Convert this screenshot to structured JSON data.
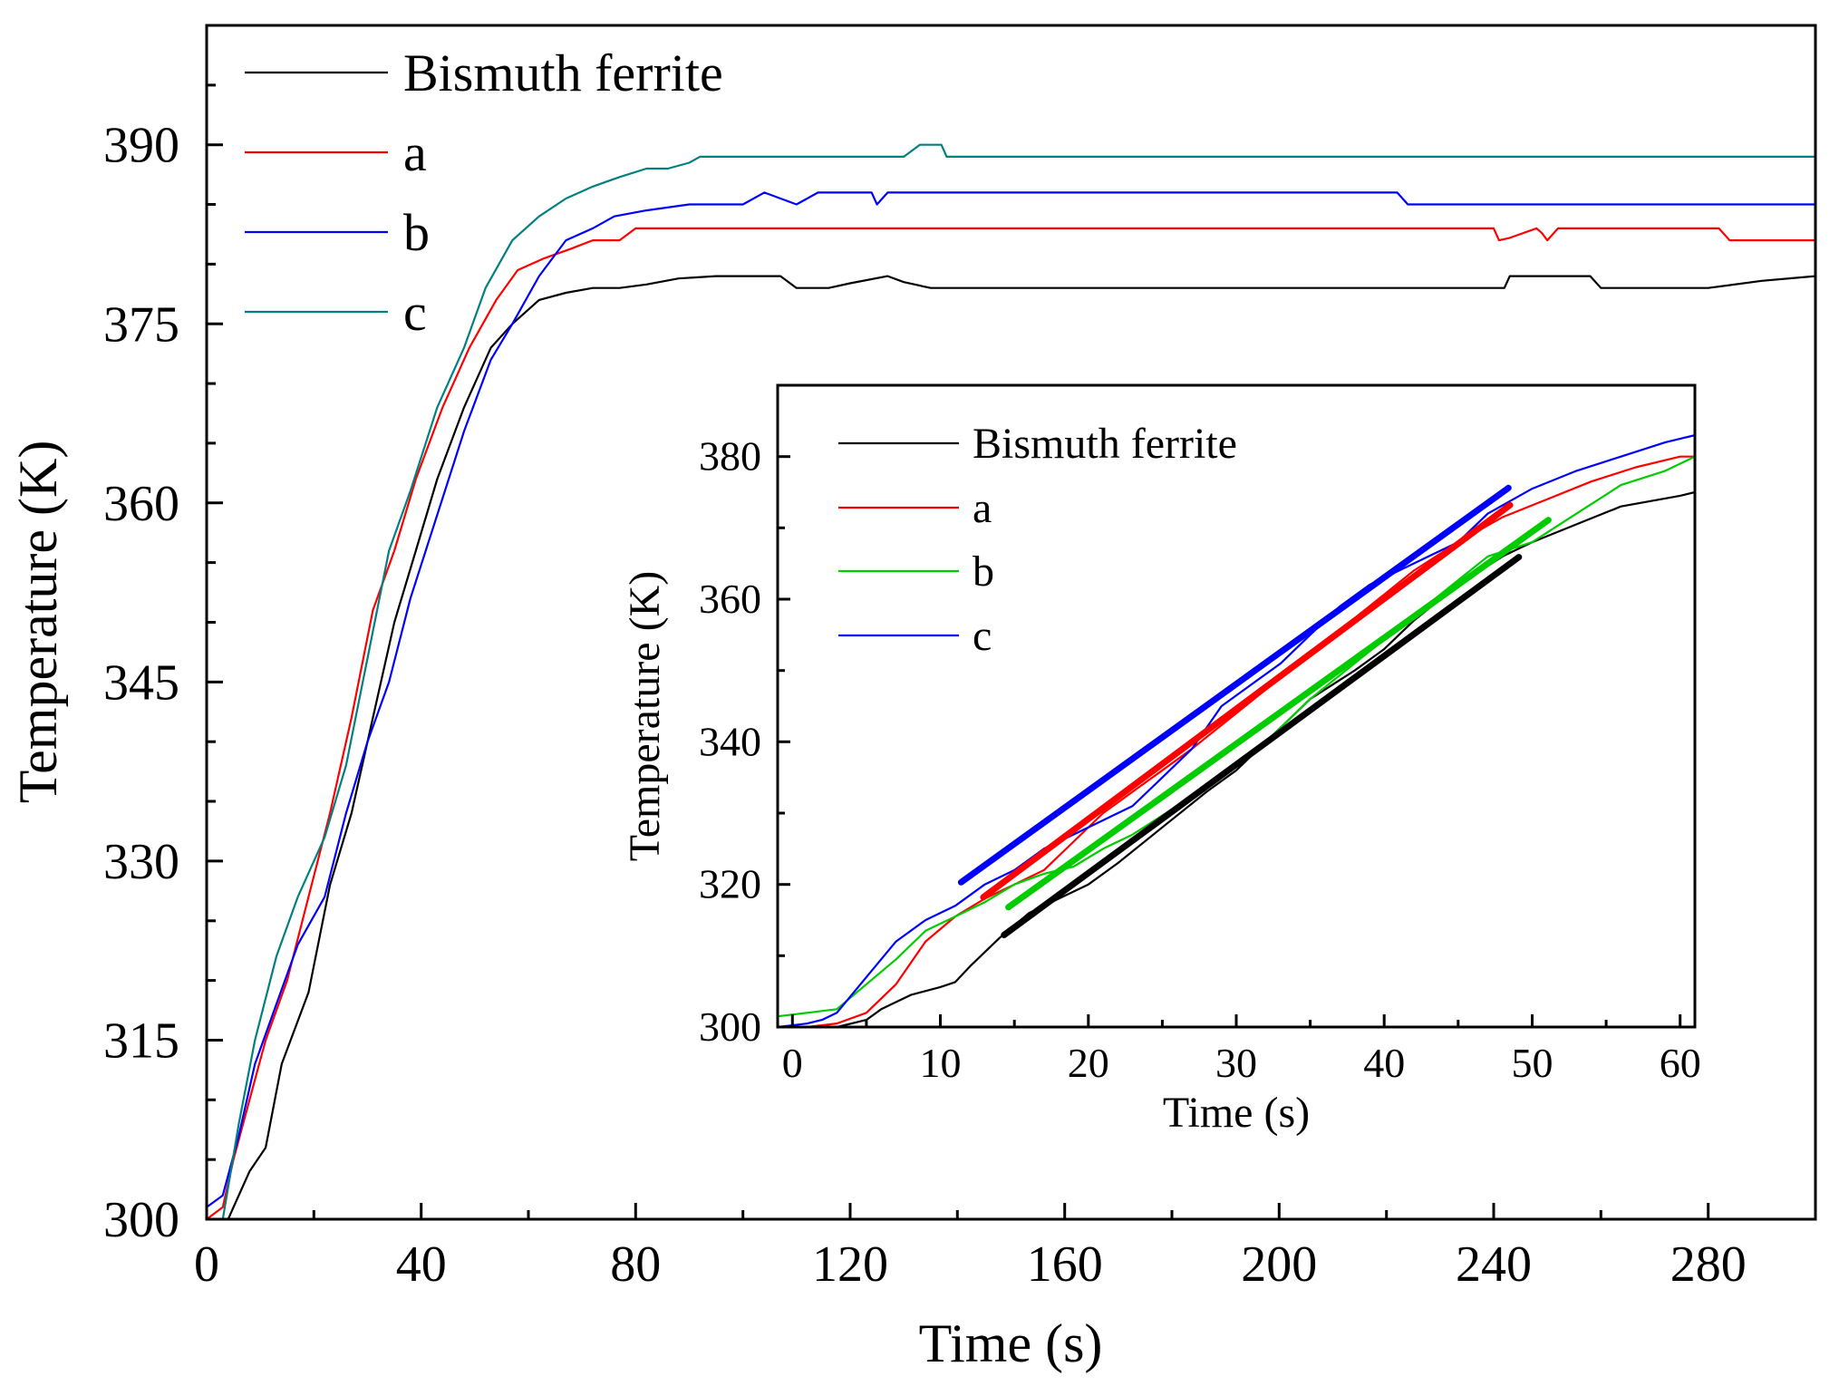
{
  "chart_data": [
    {
      "id": "main",
      "type": "line",
      "title": "",
      "xlabel": "Time (s)",
      "ylabel": "Temperature (K)",
      "xlim": [
        0,
        300
      ],
      "ylim": [
        300,
        400
      ],
      "xticks": [
        0,
        40,
        80,
        120,
        160,
        200,
        240,
        280
      ],
      "yticks": [
        300,
        315,
        330,
        345,
        360,
        375,
        390
      ],
      "x_minor_step": 20,
      "y_minor_step": 5,
      "grid": false,
      "legend_position": "top-left",
      "series": [
        {
          "name": "Bismuth ferrite",
          "color": "#000000",
          "x": [
            0,
            4,
            8,
            11,
            14,
            19,
            23,
            27,
            31,
            35,
            39,
            43,
            48,
            53,
            57,
            62,
            67,
            72,
            77,
            82,
            88,
            95,
            100,
            107,
            110,
            116,
            120,
            127,
            130,
            135,
            140,
            150,
            160,
            170,
            180,
            190,
            200,
            210,
            220,
            230,
            242,
            243,
            247,
            252,
            258,
            260,
            265,
            270,
            280,
            290,
            300
          ],
          "y": [
            300,
            300,
            304,
            306,
            313,
            319,
            328,
            334,
            342,
            350,
            356,
            362,
            368,
            373,
            375,
            377,
            377.6,
            378,
            378,
            378.3,
            378.8,
            379,
            379,
            379,
            378,
            378,
            378.4,
            379,
            378.5,
            378,
            378,
            378,
            378,
            378,
            378,
            378,
            378,
            378,
            378,
            378,
            378,
            379,
            379,
            379,
            379,
            378,
            378,
            378,
            378,
            378.6,
            379
          ]
        },
        {
          "name": "a",
          "color": "#ff0000",
          "x": [
            0,
            3,
            5,
            8,
            11,
            15,
            19,
            23,
            27,
            31,
            35,
            39,
            44,
            49,
            54,
            58,
            63,
            68,
            72,
            77,
            80,
            85,
            90,
            100,
            110,
            120,
            130,
            140,
            150,
            160,
            170,
            180,
            190,
            200,
            210,
            220,
            230,
            240,
            241,
            243,
            248,
            249,
            250,
            252,
            258,
            262,
            270,
            282,
            284,
            290,
            300
          ],
          "y": [
            300,
            301,
            305,
            310,
            315,
            320,
            327,
            334,
            342,
            351,
            356,
            362,
            368,
            373,
            377,
            379.5,
            380.5,
            381.3,
            382,
            382,
            383,
            383,
            383,
            383,
            383,
            383,
            383,
            383,
            383,
            383,
            383,
            383,
            383,
            383,
            383,
            383,
            383,
            383,
            382,
            382.2,
            383,
            382.6,
            382,
            383,
            383,
            383,
            383,
            383,
            382,
            382,
            382
          ]
        },
        {
          "name": "b",
          "color": "#0000ff",
          "x": [
            0,
            3,
            6,
            9,
            13,
            17,
            22,
            26,
            30,
            34,
            38,
            43,
            48,
            53,
            57,
            62,
            67,
            72,
            76,
            82,
            90,
            100,
            104,
            110,
            114,
            124,
            125,
            127,
            135,
            145,
            165,
            185,
            205,
            215,
            222,
            224,
            235,
            255,
            275,
            290,
            300
          ],
          "y": [
            301,
            302,
            307,
            313,
            318,
            323,
            327,
            334,
            340,
            345,
            352,
            359,
            366,
            372,
            375,
            379,
            382,
            383,
            384,
            384.5,
            385,
            385,
            386,
            385,
            386,
            386,
            385,
            386,
            386,
            386,
            386,
            386,
            386,
            386,
            386,
            385,
            385,
            385,
            385,
            385,
            385
          ]
        },
        {
          "name": "c",
          "color": "#008080",
          "x": [
            0,
            3,
            6,
            9,
            13,
            17,
            22,
            26,
            30,
            34,
            38,
            43,
            48,
            52,
            57,
            62,
            67,
            72,
            77,
            82,
            86,
            90,
            92,
            100,
            110,
            120,
            130,
            133,
            137,
            138,
            140,
            160,
            200,
            240,
            280,
            300
          ],
          "y": [
            300,
            300,
            308,
            315,
            322,
            327,
            332,
            338,
            347,
            356,
            361,
            368,
            373,
            378,
            382,
            384,
            385.5,
            386.5,
            387.3,
            388,
            388,
            388.5,
            389,
            389,
            389,
            389,
            389,
            390,
            390,
            389,
            389,
            389,
            389,
            389,
            389,
            389
          ]
        }
      ]
    },
    {
      "id": "inset",
      "type": "line",
      "title": "",
      "xlabel": "Time (s)",
      "ylabel": "Temperature (K)",
      "xlim": [
        -1,
        61
      ],
      "ylim": [
        300,
        390
      ],
      "xticks": [
        0,
        10,
        20,
        30,
        40,
        50,
        60
      ],
      "yticks": [
        300,
        320,
        340,
        360,
        380
      ],
      "x_minor_step": 5,
      "y_minor_step": 10,
      "grid": false,
      "legend_position": "top-left",
      "series": [
        {
          "name": "Bismuth ferrite",
          "color": "#000000",
          "x": [
            -1,
            1,
            3,
            4,
            5,
            6,
            8,
            10,
            11,
            12,
            14,
            16,
            18,
            20,
            22,
            25,
            28,
            30,
            33,
            35,
            38,
            40,
            42,
            45,
            48,
            50,
            53,
            56,
            60,
            61
          ],
          "y": [
            300,
            300,
            300,
            300.5,
            301,
            302.5,
            304.5,
            305.6,
            306.3,
            308.5,
            312.5,
            316,
            318,
            320,
            323,
            328,
            333,
            336,
            342,
            346,
            350,
            353,
            357,
            362,
            366,
            368,
            370.5,
            373,
            374.5,
            375
          ]
        },
        {
          "name": "a",
          "color": "#ff0000",
          "x": [
            -1,
            1,
            3,
            5,
            7,
            9,
            11,
            13,
            15,
            17,
            19,
            21,
            23,
            25,
            27,
            30,
            33,
            36,
            39,
            42,
            45,
            48,
            51,
            54,
            57,
            60,
            61
          ],
          "y": [
            300,
            300,
            300.5,
            302,
            306,
            312,
            315.5,
            318,
            320,
            322,
            326,
            330,
            333,
            336,
            339,
            344,
            349,
            354,
            359,
            364,
            368,
            371.5,
            374,
            376.5,
            378.5,
            380,
            380
          ]
        },
        {
          "name": "b",
          "color": "#00cc00",
          "x": [
            -1,
            1,
            3,
            5,
            7,
            9,
            11,
            13,
            15,
            17,
            19,
            21,
            23,
            26,
            29,
            32,
            35,
            38,
            41,
            44,
            47,
            50,
            53,
            56,
            59,
            61
          ],
          "y": [
            301.5,
            302,
            302.5,
            306,
            309.5,
            313.5,
            315.5,
            317.5,
            320,
            321.5,
            322.5,
            325,
            327,
            331,
            335,
            340,
            346,
            351,
            356,
            361,
            366,
            368,
            372,
            376,
            378,
            380
          ]
        },
        {
          "name": "c",
          "color": "#0000ff",
          "x": [
            -1,
            1,
            2,
            3,
            5,
            7,
            9,
            11,
            13,
            15,
            17,
            19,
            21,
            23,
            25,
            27,
            29,
            31,
            33,
            35,
            37,
            39,
            41,
            43,
            45,
            47,
            50,
            53,
            56,
            59,
            61
          ],
          "y": [
            300,
            300.5,
            301,
            302,
            307,
            312,
            315,
            317,
            320,
            322,
            325,
            327,
            329,
            331,
            335,
            339,
            345,
            348,
            351,
            355,
            359,
            362,
            364,
            366,
            368,
            372,
            375.5,
            378,
            380,
            382,
            383
          ]
        }
      ],
      "fit_lines": [
        {
          "name": "Bismuth ferrite fit",
          "color": "#000000",
          "x": [
            14.3,
            49.1
          ],
          "y": [
            312.9,
            365.9
          ]
        },
        {
          "name": "a fit",
          "color": "#ff0000",
          "x": [
            12.9,
            48.5
          ],
          "y": [
            318.2,
            373.2
          ]
        },
        {
          "name": "b fit",
          "color": "#00cc00",
          "x": [
            14.6,
            51.1
          ],
          "y": [
            316.8,
            371.1
          ]
        },
        {
          "name": "c fit",
          "color": "#0000ff",
          "x": [
            11.4,
            48.4
          ],
          "y": [
            320.3,
            375.6
          ]
        }
      ]
    }
  ]
}
